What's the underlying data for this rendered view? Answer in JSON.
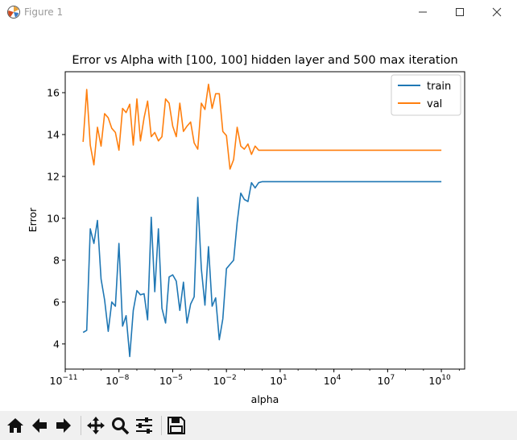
{
  "window": {
    "title": "Figure 1",
    "minimize_glyph": "—",
    "maximize_glyph": "☐",
    "close_glyph": "✕"
  },
  "toolbar": {
    "buttons": [
      {
        "name": "home-button",
        "icon": "home-icon"
      },
      {
        "name": "back-button",
        "icon": "arrow-left-icon"
      },
      {
        "name": "forward-button",
        "icon": "arrow-right-icon"
      },
      {
        "name": "pan-button",
        "icon": "move-icon"
      },
      {
        "name": "zoom-button",
        "icon": "magnifier-icon"
      },
      {
        "name": "configure-subplots-button",
        "icon": "sliders-icon"
      },
      {
        "name": "save-button",
        "icon": "floppy-icon"
      }
    ]
  },
  "chart_data": {
    "type": "line",
    "title": "Error vs Alpha with [100, 100] hidden layer and 500 max iteration",
    "xlabel": "alpha",
    "ylabel": "Error",
    "xscale": "log",
    "xlim_exp": [
      -11,
      11.3
    ],
    "ylim": [
      2.8,
      17.0
    ],
    "x_ticks": [
      {
        "exp": -11,
        "label": "−11"
      },
      {
        "exp": -8,
        "label": "−8"
      },
      {
        "exp": -5,
        "label": "−5"
      },
      {
        "exp": -2,
        "label": "−2"
      },
      {
        "exp": 1,
        "label": "1"
      },
      {
        "exp": 4,
        "label": "4"
      },
      {
        "exp": 7,
        "label": "7"
      },
      {
        "exp": 10,
        "label": "10"
      }
    ],
    "y_ticks": [
      4,
      6,
      8,
      10,
      12,
      14,
      16
    ],
    "grid": false,
    "legend": "top-right",
    "x_log10": [
      -10,
      -9.8,
      -9.6,
      -9.4,
      -9.2,
      -9.0,
      -8.8,
      -8.6,
      -8.4,
      -8.2,
      -8.0,
      -7.8,
      -7.6,
      -7.4,
      -7.2,
      -7.0,
      -6.8,
      -6.6,
      -6.4,
      -6.2,
      -6.0,
      -5.8,
      -5.6,
      -5.4,
      -5.2,
      -5.0,
      -4.8,
      -4.6,
      -4.4,
      -4.2,
      -4.0,
      -3.8,
      -3.6,
      -3.4,
      -3.2,
      -3.0,
      -2.8,
      -2.6,
      -2.4,
      -2.2,
      -2.0,
      -1.8,
      -1.6,
      -1.4,
      -1.2,
      -1.0,
      -0.8,
      -0.6,
      -0.4,
      -0.2,
      0,
      10
    ],
    "series": [
      {
        "name": "train",
        "color": "#1f77b4",
        "values": [
          4.55,
          4.65,
          9.5,
          8.8,
          9.9,
          7.1,
          6.1,
          4.6,
          6.0,
          5.8,
          8.8,
          4.85,
          5.35,
          3.4,
          5.6,
          6.55,
          6.35,
          6.4,
          5.15,
          10.05,
          6.5,
          9.5,
          5.7,
          5.0,
          7.2,
          7.3,
          7.0,
          5.6,
          6.95,
          5.0,
          5.9,
          6.25,
          11.0,
          7.6,
          5.85,
          8.65,
          5.8,
          6.2,
          4.2,
          5.2,
          7.6,
          7.8,
          8.0,
          9.8,
          11.2,
          10.9,
          10.8,
          11.7,
          11.45,
          11.7,
          11.75,
          11.75
        ]
      },
      {
        "name": "val",
        "color": "#ff7f0e",
        "values": [
          13.65,
          16.15,
          13.5,
          12.55,
          14.35,
          13.45,
          15.0,
          14.8,
          14.3,
          14.1,
          13.25,
          15.25,
          15.05,
          15.45,
          13.5,
          15.7,
          13.7,
          14.8,
          15.6,
          13.9,
          14.1,
          13.7,
          13.9,
          15.7,
          15.5,
          14.4,
          13.9,
          15.5,
          14.15,
          14.4,
          14.6,
          13.6,
          13.3,
          15.5,
          15.2,
          16.4,
          15.25,
          15.95,
          15.95,
          14.15,
          13.95,
          12.35,
          12.8,
          14.35,
          13.45,
          13.3,
          13.55,
          13.05,
          13.45,
          13.25,
          13.25,
          13.25
        ]
      }
    ]
  }
}
